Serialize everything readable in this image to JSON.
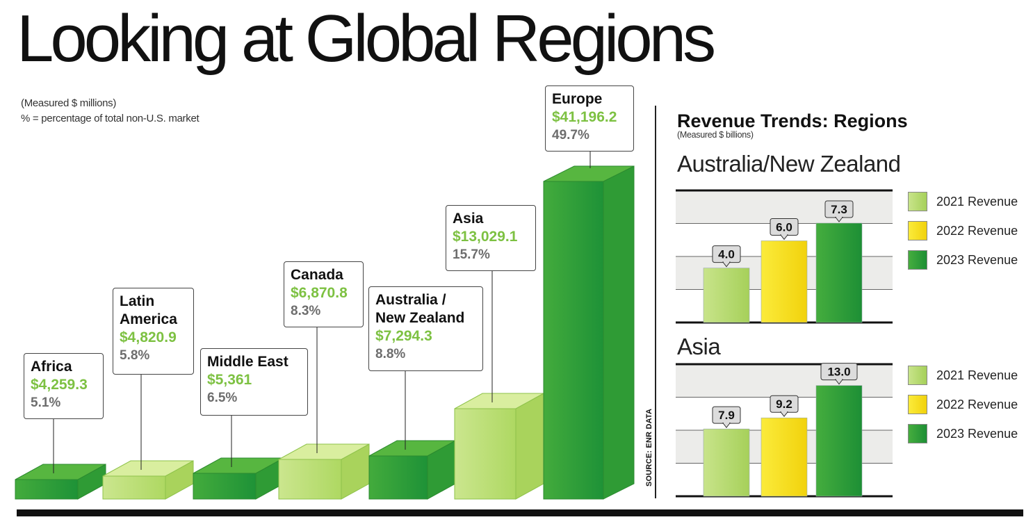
{
  "title": "Looking at Global Regions",
  "notes": [
    "(Measured $ millions)",
    "% = percentage of total non-U.S. market"
  ],
  "source": "SOURCE: ENR DATA",
  "colors": {
    "light_green": "#b7dc6f",
    "yellow": "#f5e11a",
    "dark_green": "#2e9e38",
    "amount_green": "#7dc142",
    "pct_gray": "#6d6d6d"
  },
  "chart_data": [
    {
      "type": "bar",
      "title": "Looking at Global Regions",
      "units": "$ millions",
      "categories": [
        "Africa",
        "Latin America",
        "Middle East",
        "Canada",
        "Australia / New Zealand",
        "Asia",
        "Europe"
      ],
      "values": [
        4259.3,
        4820.9,
        5361,
        6870.8,
        7294.3,
        13029.1,
        41196.2
      ],
      "value_labels": [
        "$4,259.3",
        "$4,820.9",
        "$5,361",
        "$6,870.8",
        "$7,294.3",
        "$13,029.1",
        "$41,196.2"
      ],
      "share_labels": [
        "5.1%",
        "5.8%",
        "6.5%",
        "8.3%",
        "8.8%",
        "15.7%",
        "49.7%"
      ],
      "callout_names": [
        [
          "Africa"
        ],
        [
          "Latin",
          "America"
        ],
        [
          "Middle East"
        ],
        [
          "Canada"
        ],
        [
          "Australia /",
          "New Zealand"
        ],
        [
          "Asia"
        ],
        [
          "Europe"
        ]
      ],
      "bar_colors": [
        "dark",
        "light",
        "dark",
        "light",
        "dark",
        "light",
        "dark"
      ]
    },
    {
      "type": "bar",
      "title": "Revenue Trends: Regions",
      "subtitle": "(Measured $ billions)",
      "panel_title": "Australia/New Zealand",
      "categories": [
        "2021 Revenue",
        "2022 Revenue",
        "2023 Revenue"
      ],
      "values": [
        4.0,
        6.0,
        7.3
      ],
      "value_labels": [
        "4.0",
        "6.0",
        "7.3"
      ]
    },
    {
      "type": "bar",
      "panel_title": "Asia",
      "categories": [
        "2021 Revenue",
        "2022 Revenue",
        "2023 Revenue"
      ],
      "values": [
        7.9,
        9.2,
        13.0
      ],
      "value_labels": [
        "7.9",
        "9.2",
        "13.0"
      ]
    }
  ]
}
